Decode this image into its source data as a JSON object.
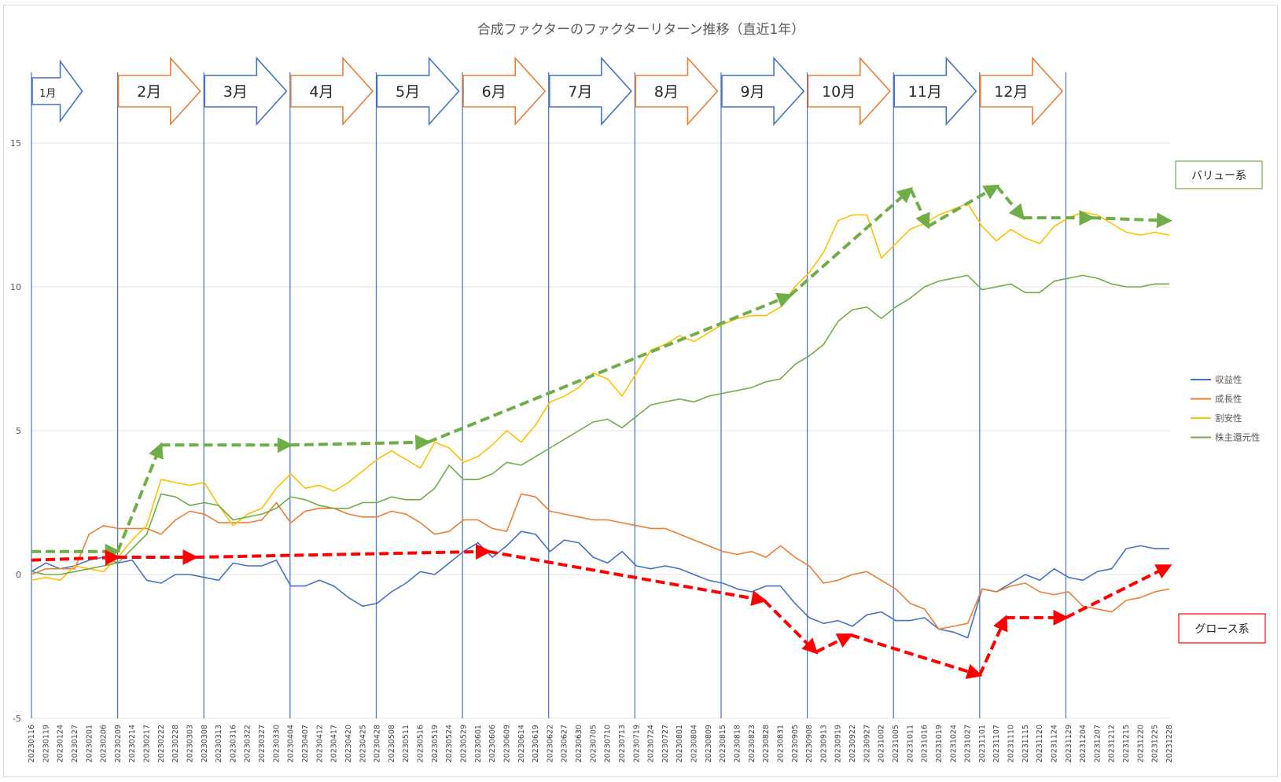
{
  "chart_data": {
    "type": "line",
    "title": "合成ファクターのファクターリターン推移（直近1年）",
    "yticks": [
      15,
      10,
      5,
      0,
      -5
    ],
    "ylim": [
      -5,
      15
    ],
    "grid": "horizontal",
    "legend_position": "right",
    "x": [
      "20230116",
      "20230119",
      "20230124",
      "20230127",
      "20230201",
      "20230206",
      "20230209",
      "20230214",
      "20230217",
      "20230222",
      "20230228",
      "20230303",
      "20230308",
      "20230313",
      "20230316",
      "20230322",
      "20230327",
      "20230330",
      "20230404",
      "20230407",
      "20230412",
      "20230417",
      "20230420",
      "20230425",
      "20230428",
      "20230508",
      "20230511",
      "20230516",
      "20230519",
      "20230524",
      "20230529",
      "20230601",
      "20230606",
      "20230609",
      "20230614",
      "20230619",
      "20230622",
      "20230627",
      "20230630",
      "20230705",
      "20230710",
      "20230713",
      "20230719",
      "20230724",
      "20230727",
      "20230801",
      "20230804",
      "20230809",
      "20230815",
      "20230818",
      "20230823",
      "20230828",
      "20230831",
      "20230905",
      "20230908",
      "20230913",
      "20230919",
      "20230922",
      "20230927",
      "20231002",
      "20231005",
      "20231011",
      "20231016",
      "20231019",
      "20231024",
      "20231027",
      "20231101",
      "20231107",
      "20231110",
      "20231115",
      "20231120",
      "20231124",
      "20231129",
      "20231204",
      "20231207",
      "20231212",
      "20231215",
      "20231220",
      "20231225",
      "20231228"
    ],
    "series": [
      {
        "name": "収益性",
        "color": "#4472c4",
        "values": [
          0.1,
          0.4,
          0.2,
          0.3,
          0.5,
          0.6,
          0.4,
          0.5,
          -0.2,
          -0.3,
          0.0,
          0.0,
          -0.1,
          -0.2,
          0.4,
          0.3,
          0.3,
          0.5,
          -0.4,
          -0.4,
          -0.2,
          -0.4,
          -0.8,
          -1.1,
          -1.0,
          -0.6,
          -0.3,
          0.1,
          0.0,
          0.4,
          0.8,
          1.1,
          0.6,
          1.0,
          1.5,
          1.4,
          0.8,
          1.2,
          1.1,
          0.6,
          0.4,
          0.8,
          0.3,
          0.2,
          0.3,
          0.2,
          0.0,
          -0.2,
          -0.3,
          -0.5,
          -0.6,
          -0.4,
          -0.4,
          -1.0,
          -1.5,
          -1.7,
          -1.6,
          -1.8,
          -1.4,
          -1.3,
          -1.6,
          -1.6,
          -1.5,
          -1.9,
          -2.0,
          -2.2,
          -0.5,
          -0.6,
          -0.3,
          0.0,
          -0.2,
          0.2,
          -0.1,
          -0.2,
          0.1,
          0.2,
          0.9,
          1.0,
          0.9,
          0.9
        ]
      },
      {
        "name": "成長性",
        "color": "#ed7d31",
        "values": [
          0.0,
          0.2,
          0.2,
          0.2,
          1.4,
          1.7,
          1.6,
          1.6,
          1.6,
          1.4,
          1.9,
          2.2,
          2.1,
          1.8,
          1.8,
          1.8,
          1.9,
          2.5,
          1.8,
          2.2,
          2.3,
          2.3,
          2.1,
          2.0,
          2.0,
          2.2,
          2.1,
          1.8,
          1.4,
          1.5,
          1.9,
          1.9,
          1.6,
          1.5,
          2.8,
          2.7,
          2.2,
          2.1,
          2.0,
          1.9,
          1.9,
          1.8,
          1.7,
          1.6,
          1.6,
          1.4,
          1.2,
          1.0,
          0.8,
          0.7,
          0.8,
          0.6,
          1.0,
          0.6,
          0.3,
          -0.3,
          -0.2,
          0.0,
          0.1,
          -0.2,
          -0.5,
          -1.0,
          -1.2,
          -1.9,
          -1.8,
          -1.7,
          -0.5,
          -0.6,
          -0.4,
          -0.3,
          -0.6,
          -0.7,
          -0.6,
          -1.1,
          -1.2,
          -1.3,
          -0.9,
          -0.8,
          -0.6,
          -0.5
        ]
      },
      {
        "name": "割安性",
        "color": "#ffc000",
        "values": [
          -0.2,
          -0.1,
          -0.2,
          0.3,
          0.2,
          0.1,
          0.6,
          1.2,
          1.7,
          3.3,
          3.2,
          3.1,
          3.2,
          2.4,
          1.7,
          2.1,
          2.3,
          3.0,
          3.5,
          3.0,
          3.1,
          2.9,
          3.2,
          3.6,
          4.0,
          4.3,
          4.0,
          3.7,
          4.6,
          4.4,
          3.9,
          4.1,
          4.5,
          5.0,
          4.6,
          5.2,
          6.0,
          6.2,
          6.5,
          7.0,
          6.8,
          6.2,
          7.0,
          7.8,
          8.0,
          8.3,
          8.1,
          8.4,
          8.7,
          8.9,
          9.0,
          9.0,
          9.3,
          10.0,
          10.5,
          11.2,
          12.3,
          12.5,
          12.5,
          11.0,
          11.5,
          12.0,
          12.2,
          12.5,
          12.7,
          12.9,
          12.1,
          11.6,
          12.0,
          11.7,
          11.5,
          12.1,
          12.4,
          12.6,
          12.5,
          12.2,
          11.9,
          11.8,
          11.9,
          11.8
        ]
      },
      {
        "name": "株主還元性",
        "color": "#70ad47",
        "values": [
          0.1,
          0.0,
          0.0,
          0.1,
          0.2,
          0.3,
          0.4,
          0.9,
          1.4,
          2.8,
          2.7,
          2.4,
          2.5,
          2.4,
          1.9,
          2.0,
          2.1,
          2.3,
          2.7,
          2.6,
          2.4,
          2.3,
          2.3,
          2.5,
          2.5,
          2.7,
          2.6,
          2.6,
          3.0,
          3.8,
          3.3,
          3.3,
          3.5,
          3.9,
          3.8,
          4.1,
          4.4,
          4.7,
          5.0,
          5.3,
          5.4,
          5.1,
          5.5,
          5.9,
          6.0,
          6.1,
          6.0,
          6.2,
          6.3,
          6.4,
          6.5,
          6.7,
          6.8,
          7.3,
          7.6,
          8.0,
          8.8,
          9.2,
          9.3,
          8.9,
          9.3,
          9.6,
          10.0,
          10.2,
          10.3,
          10.4,
          9.9,
          10.0,
          10.1,
          9.8,
          9.8,
          10.2,
          10.3,
          10.4,
          10.3,
          10.1,
          10.0,
          10.0,
          10.1,
          10.1
        ]
      }
    ],
    "month_labels": [
      "1月",
      "2月",
      "3月",
      "4月",
      "5月",
      "6月",
      "7月",
      "8月",
      "9月",
      "10月",
      "11月",
      "12月"
    ],
    "month_arrow_colors": [
      "#4472c4",
      "#ed7d31",
      "#4472c4",
      "#ed7d31",
      "#4472c4",
      "#ed7d31",
      "#4472c4",
      "#ed7d31",
      "#4472c4",
      "#ed7d31",
      "#4472c4",
      "#ed7d31"
    ],
    "annotations": {
      "value_label": "バリュー系",
      "value_color": "#70ad47",
      "growth_label": "グロース系",
      "growth_color": "#ff0000",
      "value_trend": [
        [
          0.0,
          0.8
        ],
        [
          1.0,
          0.8
        ],
        [
          1.5,
          4.5
        ],
        [
          3.0,
          4.5
        ],
        [
          4.6,
          4.6
        ],
        [
          8.8,
          9.7
        ],
        [
          10.2,
          13.4
        ],
        [
          10.4,
          12.1
        ],
        [
          11.2,
          13.5
        ],
        [
          11.5,
          12.4
        ],
        [
          12.3,
          12.4
        ],
        [
          13.2,
          12.3
        ]
      ],
      "growth_trend": [
        [
          0.0,
          0.5
        ],
        [
          1.0,
          0.6
        ],
        [
          1.9,
          0.6
        ],
        [
          5.3,
          0.8
        ],
        [
          8.5,
          -0.9
        ],
        [
          9.1,
          -2.7
        ],
        [
          9.5,
          -2.1
        ],
        [
          11.0,
          -3.5
        ],
        [
          11.3,
          -1.5
        ],
        [
          12.0,
          -1.5
        ],
        [
          13.2,
          0.3
        ]
      ]
    }
  }
}
